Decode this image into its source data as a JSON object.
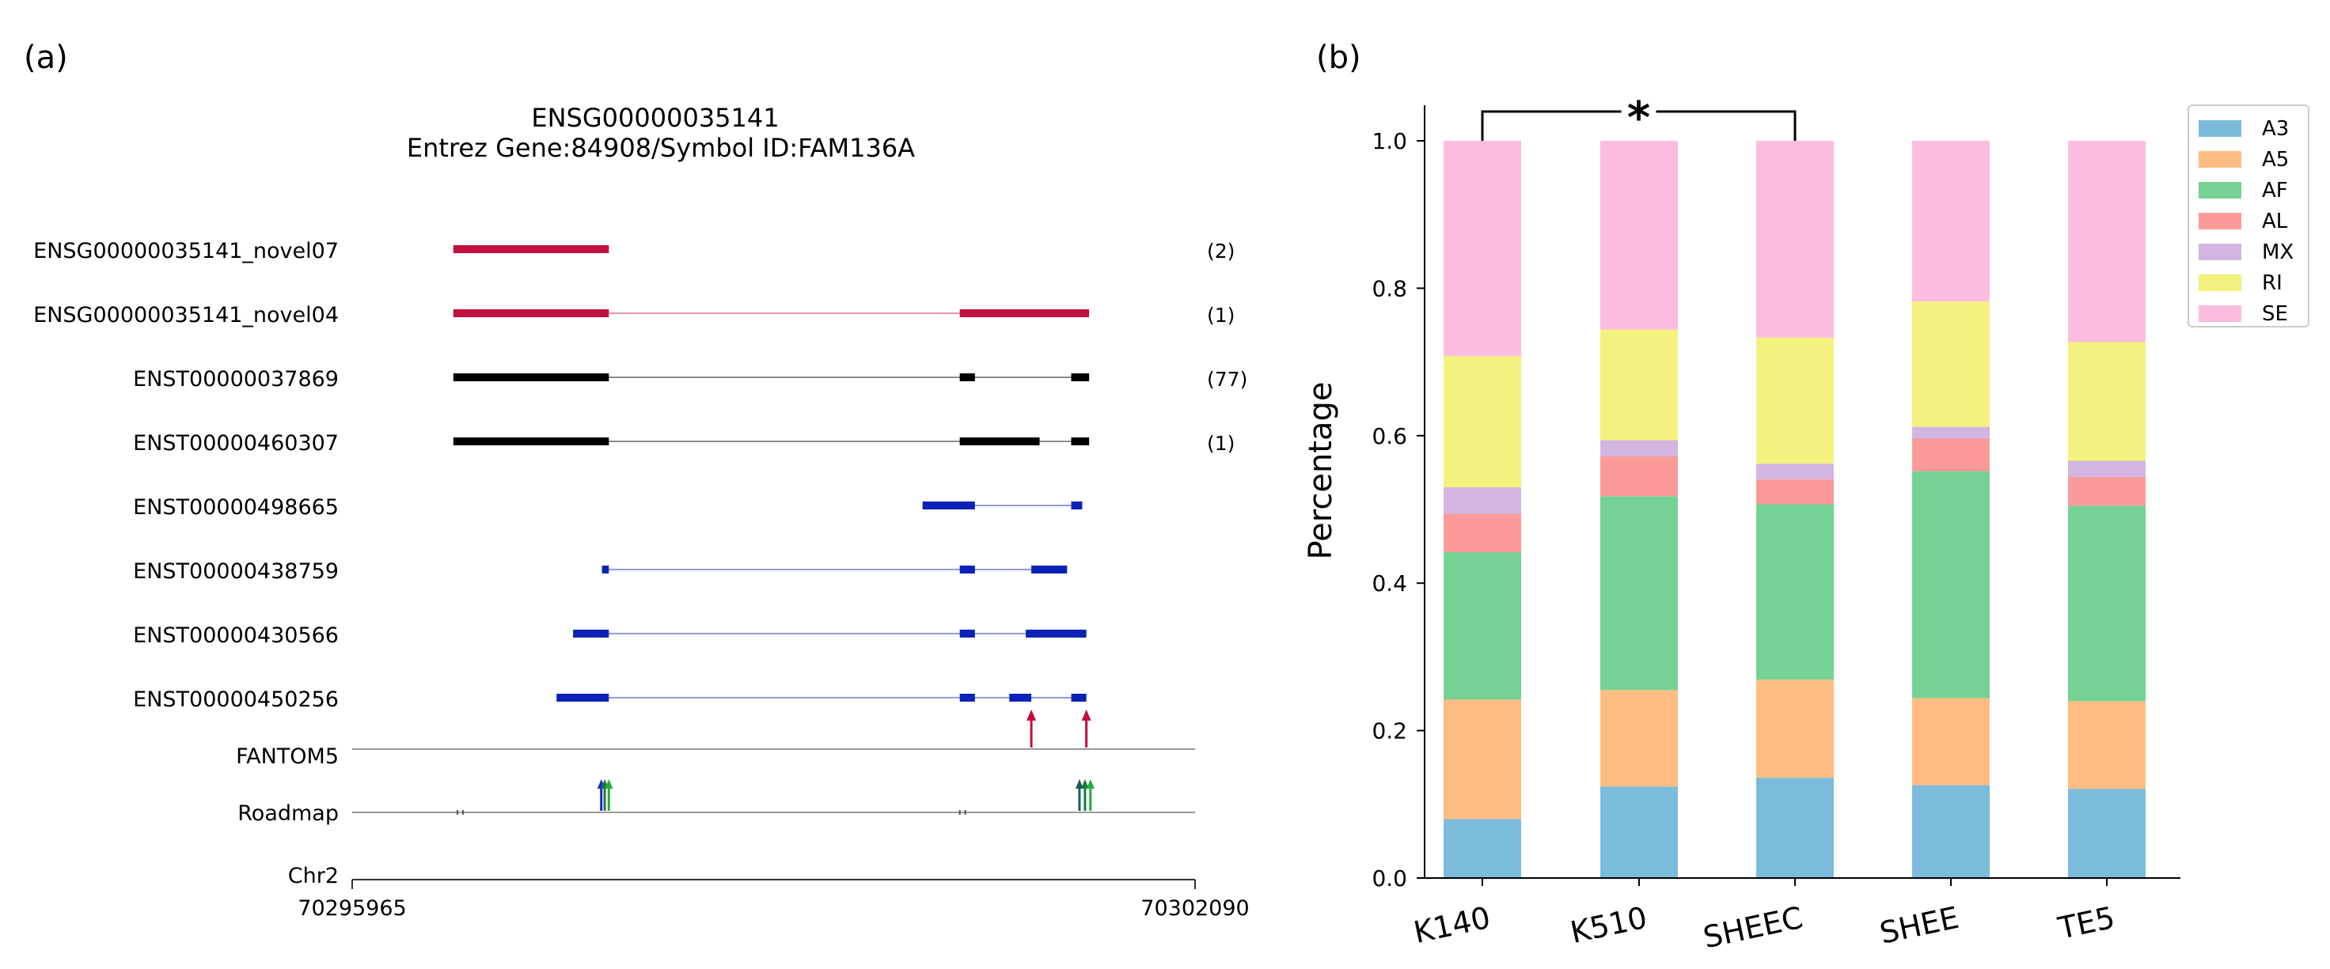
{
  "panel_labels": {
    "a": "(a)",
    "b": "(b)"
  },
  "chart_data": [
    {
      "type": "gene_track",
      "title_line1": "ENSG00000035141",
      "title_line2": "Entrez Gene:84908/Symbol ID:FAM136A",
      "genome": {
        "start": 70295965,
        "end": 70302090,
        "chrom_label": "Chr2",
        "start_label": "70295965",
        "end_label": "70302090"
      },
      "transcripts": [
        {
          "id": "ENSG00000035141_novel07",
          "color": "#c0103c",
          "kind": "novel",
          "count": "(2)",
          "exons": [
            [
              70296700,
              70297830
            ]
          ]
        },
        {
          "id": "ENSG00000035141_novel04",
          "color": "#c0103c",
          "kind": "novel",
          "count": "(1)",
          "exons": [
            [
              70296700,
              70297830
            ],
            [
              70300380,
              70301320
            ]
          ]
        },
        {
          "id": "ENST00000037869",
          "color": "#000000",
          "kind": "known",
          "count": "(77)",
          "exons": [
            [
              70296700,
              70297830
            ],
            [
              70300380,
              70300490
            ],
            [
              70301190,
              70301320
            ]
          ]
        },
        {
          "id": "ENST00000460307",
          "color": "#000000",
          "kind": "known",
          "count": "(1)",
          "exons": [
            [
              70296700,
              70297830
            ],
            [
              70300380,
              70300960
            ],
            [
              70301190,
              70301320
            ]
          ]
        },
        {
          "id": "ENST00000498665",
          "color": "#0a22b8",
          "kind": "known",
          "count": "",
          "exons": [
            [
              70300110,
              70300490
            ],
            [
              70301190,
              70301270
            ]
          ]
        },
        {
          "id": "ENST00000438759",
          "color": "#0a22b8",
          "kind": "known",
          "count": "",
          "exons": [
            [
              70297780,
              70297830
            ],
            [
              70300380,
              70300490
            ],
            [
              70300900,
              70301160
            ]
          ]
        },
        {
          "id": "ENST00000430566",
          "color": "#0a22b8",
          "kind": "known",
          "count": "",
          "exons": [
            [
              70297570,
              70297830
            ],
            [
              70300380,
              70300490
            ],
            [
              70300860,
              70301300
            ]
          ]
        },
        {
          "id": "ENST00000450256",
          "color": "#0a22b8",
          "kind": "known",
          "count": "",
          "exons": [
            [
              70297450,
              70297830
            ],
            [
              70300380,
              70300490
            ],
            [
              70300740,
              70300900
            ],
            [
              70301190,
              70301300
            ]
          ]
        }
      ],
      "fantom5": {
        "label": "FANTOM5",
        "color": "#c0103c",
        "peaks": [
          70300900,
          70301300
        ]
      },
      "roadmap": {
        "label": "Roadmap",
        "peaks": [
          {
            "pos": 70297775,
            "color": "#2222cc"
          },
          {
            "pos": 70297800,
            "color": "#1a7a3a"
          },
          {
            "pos": 70297830,
            "color": "#22aa44"
          },
          {
            "pos": 70301250,
            "color": "#1a5a5a"
          },
          {
            "pos": 70301290,
            "color": "#1a7a3a"
          },
          {
            "pos": 70301330,
            "color": "#22aa44"
          }
        ],
        "ticks": [
          70296730,
          70296770,
          70300380,
          70300420
        ]
      }
    },
    {
      "type": "stacked_bar",
      "ylabel": "Percentage",
      "xlabel": "",
      "ylim": [
        0,
        1.0
      ],
      "yticks": [
        0.0,
        0.2,
        0.4,
        0.6,
        0.8,
        1.0
      ],
      "ytick_labels": [
        "0.0",
        "0.2",
        "0.4",
        "0.6",
        "0.8",
        "1.0"
      ],
      "categories": [
        "K140",
        "K510",
        "SHEEC",
        "SHEE",
        "TE5"
      ],
      "series": [
        {
          "name": "A3",
          "color": "#7bbbdc",
          "values": [
            0.08,
            0.124,
            0.136,
            0.126,
            0.121
          ]
        },
        {
          "name": "A5",
          "color": "#fdbd82",
          "values": [
            0.162,
            0.131,
            0.133,
            0.118,
            0.119
          ]
        },
        {
          "name": "AF",
          "color": "#76d194",
          "values": [
            0.2,
            0.263,
            0.238,
            0.308,
            0.265
          ]
        },
        {
          "name": "AL",
          "color": "#fb9a99",
          "values": [
            0.052,
            0.054,
            0.034,
            0.044,
            0.039
          ]
        },
        {
          "name": "MX",
          "color": "#d2b5e0",
          "values": [
            0.036,
            0.022,
            0.021,
            0.016,
            0.022
          ]
        },
        {
          "name": "RI",
          "color": "#f3f27e",
          "values": [
            0.178,
            0.15,
            0.171,
            0.17,
            0.161
          ]
        },
        {
          "name": "SE",
          "color": "#fdbde0",
          "values": [
            0.292,
            0.256,
            0.267,
            0.218,
            0.273
          ]
        }
      ],
      "legend_position": "top-right",
      "significance": {
        "from": "K140",
        "to": "SHEEC",
        "label": "*"
      }
    }
  ]
}
